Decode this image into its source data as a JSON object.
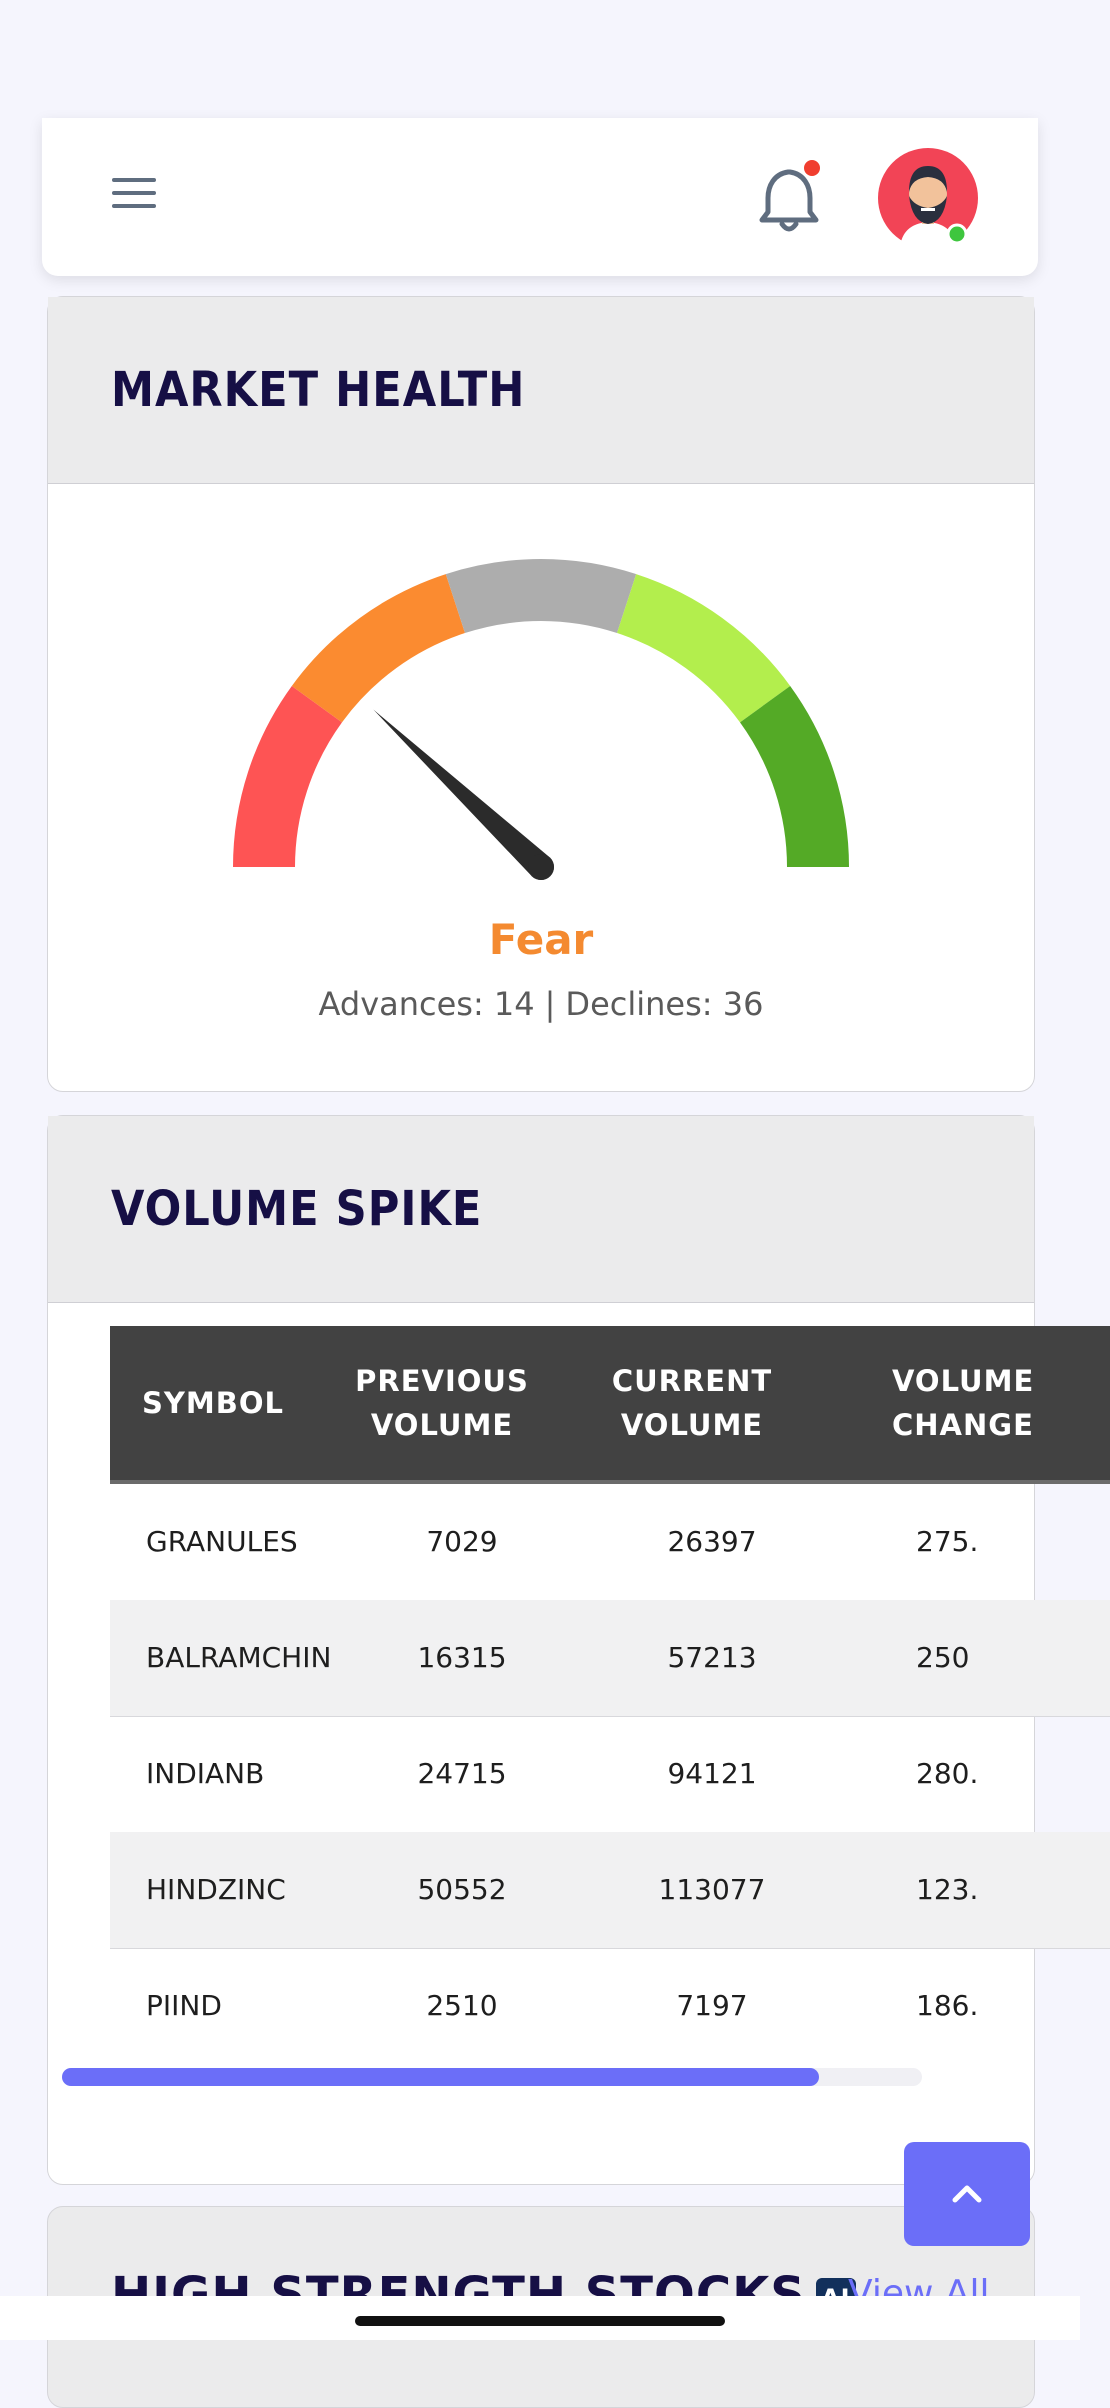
{
  "header": {
    "menu_icon": "hamburger-menu-icon",
    "notification_icon": "bell-icon",
    "avatar_icon": "user-avatar",
    "notification_dot_color": "#f03e2f",
    "online_dot_color": "#3ec63e"
  },
  "market_health": {
    "title": "MARKET HEALTH",
    "sentiment": "Fear",
    "sentiment_color": "#f48a30",
    "advances_label": "Advances: 14",
    "separator": "|",
    "declines_label": "Declines: 36",
    "gauge": {
      "needle_value": 0.24,
      "segments": [
        {
          "color": "#fe5454",
          "from": 0.0,
          "to": 0.2
        },
        {
          "color": "#fb8b30",
          "from": 0.2,
          "to": 0.4
        },
        {
          "color": "#adadad",
          "from": 0.4,
          "to": 0.6
        },
        {
          "color": "#b3ee4d",
          "from": 0.6,
          "to": 0.8
        },
        {
          "color": "#54aa26",
          "from": 0.8,
          "to": 1.0
        }
      ]
    }
  },
  "volume_spike": {
    "title": "VOLUME SPIKE",
    "columns": [
      {
        "line1": "SYMBOL",
        "line2": ""
      },
      {
        "line1": "PREVIOUS",
        "line2": "VOLUME"
      },
      {
        "line1": "CURRENT",
        "line2": "VOLUME"
      },
      {
        "line1": "VOLUME",
        "line2": "CHANGE"
      }
    ],
    "rows": [
      {
        "symbol": "GRANULES",
        "previous": "7029",
        "current": "26397",
        "change": "275."
      },
      {
        "symbol": "BALRAMCHIN",
        "previous": "16315",
        "current": "57213",
        "change": "250"
      },
      {
        "symbol": "INDIANB",
        "previous": "24715",
        "current": "94121",
        "change": "280."
      },
      {
        "symbol": "HINDZINC",
        "previous": "50552",
        "current": "113077",
        "change": "123."
      },
      {
        "symbol": "PIIND",
        "previous": "2510",
        "current": "7197",
        "change": "186."
      }
    ],
    "scroll_fraction": 0.88
  },
  "high_strength": {
    "title": "HIGH STRENGTH STOCKS",
    "badge": "AI",
    "view_all": "View All"
  },
  "scroll_top_icon": "chevron-up-icon"
}
